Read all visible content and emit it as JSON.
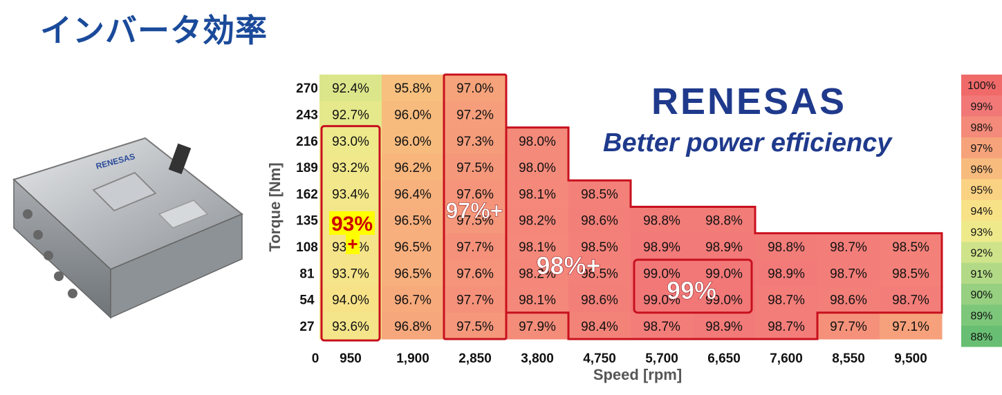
{
  "page": {
    "title": "インバータ効率",
    "brand": "RENESAS",
    "tagline": "Better power efficiency"
  },
  "chart_data": {
    "type": "heatmap",
    "xlabel": "Speed [rpm]",
    "ylabel": "Torque [Nm]",
    "origin_label": "0",
    "x": [
      "950",
      "1,900",
      "2,850",
      "3,800",
      "4,750",
      "5,700",
      "6,650",
      "7,600",
      "8,550",
      "9,500"
    ],
    "y": [
      "270",
      "243",
      "216",
      "189",
      "162",
      "135",
      "108",
      "81",
      "54",
      "27"
    ],
    "values": [
      [
        "92.4%",
        "95.8%",
        "97.0%",
        null,
        null,
        null,
        null,
        null,
        null,
        null
      ],
      [
        "92.7%",
        "96.0%",
        "97.2%",
        null,
        null,
        null,
        null,
        null,
        null,
        null
      ],
      [
        "93.0%",
        "96.0%",
        "97.3%",
        "98.0%",
        null,
        null,
        null,
        null,
        null,
        null
      ],
      [
        "93.2%",
        "96.2%",
        "97.5%",
        "98.0%",
        null,
        null,
        null,
        null,
        null,
        null
      ],
      [
        "93.4%",
        "96.4%",
        "97.6%",
        "98.1%",
        "98.5%",
        null,
        null,
        null,
        null,
        null
      ],
      [
        "93.5%",
        "96.5%",
        "97.5%",
        "98.2%",
        "98.6%",
        "98.8%",
        "98.8%",
        null,
        null,
        null
      ],
      [
        "93.7%",
        "96.5%",
        "97.7%",
        "98.1%",
        "98.5%",
        "98.9%",
        "98.9%",
        "98.8%",
        "98.7%",
        "98.5%"
      ],
      [
        "93.7%",
        "96.5%",
        "97.6%",
        "98.2%",
        "98.5%",
        "99.0%",
        "99.0%",
        "98.9%",
        "98.7%",
        "98.5%"
      ],
      [
        "94.0%",
        "96.7%",
        "97.7%",
        "98.1%",
        "98.6%",
        "99.0%",
        "99.0%",
        "98.7%",
        "98.6%",
        "98.7%"
      ],
      [
        "93.6%",
        "96.8%",
        "97.5%",
        "97.9%",
        "98.4%",
        "98.7%",
        "98.9%",
        "98.7%",
        "97.7%",
        "97.1%"
      ]
    ],
    "color_scale": {
      "labels": [
        "100%",
        "99%",
        "98%",
        "97%",
        "96%",
        "95%",
        "94%",
        "93%",
        "92%",
        "91%",
        "90%",
        "89%",
        "88%"
      ],
      "colors": [
        "#f06a6a",
        "#f27878",
        "#f48a7a",
        "#f6a37b",
        "#f8bb7e",
        "#fad283",
        "#f8e288",
        "#eeea8c",
        "#cfe38a",
        "#b2da86",
        "#96d080",
        "#7dc77b",
        "#68bf73"
      ]
    },
    "annotations": [
      {
        "text": "93%",
        "text2": "+",
        "color": "#cc0000",
        "background": "#ffff00"
      },
      {
        "text": "97%+",
        "color": "#ffffff"
      },
      {
        "text": "98%+",
        "color": "#ffffff"
      },
      {
        "text": "99%",
        "color": "#ffffff"
      }
    ]
  }
}
